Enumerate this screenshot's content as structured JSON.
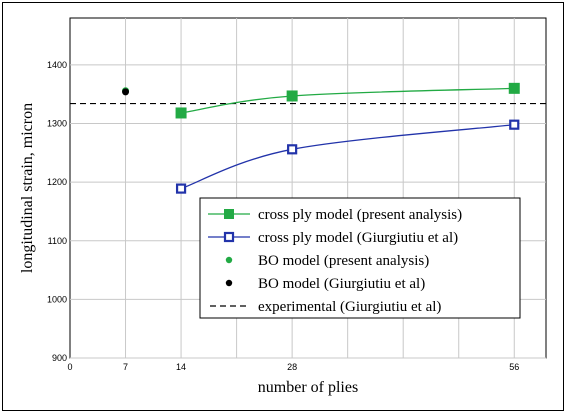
{
  "chart_data": {
    "type": "line",
    "xlabel": "number of plies",
    "ylabel": "longitudinal strain, micron",
    "xlim": [
      0,
      60
    ],
    "ylim": [
      900,
      1480
    ],
    "x_ticks": [
      0,
      7,
      14,
      28,
      56
    ],
    "y_ticks": [
      900,
      1000,
      1100,
      1200,
      1300,
      1400
    ],
    "grid": true,
    "legend_position": "bottom-right",
    "colors": {
      "green": "#22aa44",
      "blue": "#2233aa",
      "black": "#000000"
    },
    "series": [
      {
        "name": "cross ply model (present analysis)",
        "style": "line-filled-square",
        "color": "#22aa44",
        "x": [
          14,
          28,
          56
        ],
        "y": [
          1318,
          1347,
          1360
        ]
      },
      {
        "name": "cross ply model (Giurgiutiu et al)",
        "style": "line-open-square",
        "color": "#2233aa",
        "x": [
          14,
          28,
          56
        ],
        "y": [
          1189,
          1256,
          1298
        ]
      },
      {
        "name": "BO model (present analysis)",
        "style": "filled-dot",
        "color": "#22aa44",
        "x": [
          7
        ],
        "y": [
          1356
        ]
      },
      {
        "name": "BO model (Giurgiutiu et al)",
        "style": "filled-dot",
        "color": "#000000",
        "x": [
          7
        ],
        "y": [
          1354
        ]
      },
      {
        "name": "experimental (Giurgiutiu et al)",
        "style": "dashed-line",
        "color": "#000000",
        "y": 1334
      }
    ]
  }
}
